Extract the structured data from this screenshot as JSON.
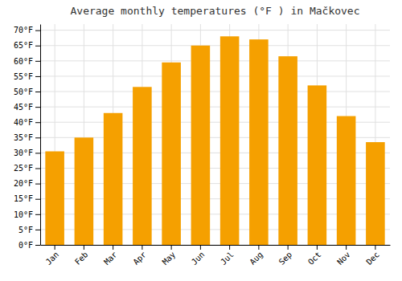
{
  "chart_data": {
    "type": "bar",
    "title": "Average monthly temperatures (°F ) in Mačkovec",
    "categories": [
      "Jan",
      "Feb",
      "Mar",
      "Apr",
      "May",
      "Jun",
      "Jul",
      "Aug",
      "Sep",
      "Oct",
      "Nov",
      "Dec"
    ],
    "values": [
      30.5,
      35.0,
      43.0,
      51.5,
      59.5,
      65.0,
      68.0,
      67.0,
      61.5,
      52.0,
      42.0,
      33.5
    ],
    "color": "#F5A000",
    "ylim": [
      0,
      72
    ],
    "yticks": [
      {
        "value": 0,
        "label": "0°F"
      },
      {
        "value": 5,
        "label": "5°F"
      },
      {
        "value": 10,
        "label": "10°F"
      },
      {
        "value": 15,
        "label": "15°F"
      },
      {
        "value": 20,
        "label": "20°F"
      },
      {
        "value": 25,
        "label": "25°F"
      },
      {
        "value": 30,
        "label": "30°F"
      },
      {
        "value": 35,
        "label": "35°F"
      },
      {
        "value": 40,
        "label": "40°F"
      },
      {
        "value": 45,
        "label": "45°F"
      },
      {
        "value": 50,
        "label": "50°F"
      },
      {
        "value": 55,
        "label": "55°F"
      },
      {
        "value": 60,
        "label": "60°F"
      },
      {
        "value": 65,
        "label": "65°F"
      },
      {
        "value": 70,
        "label": "70°F"
      }
    ],
    "grid": true
  }
}
